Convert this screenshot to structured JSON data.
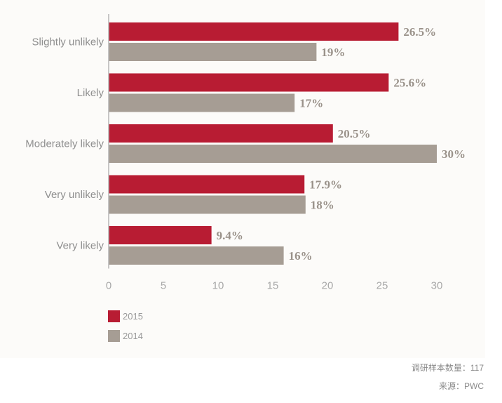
{
  "chart_data": {
    "type": "bar",
    "orientation": "horizontal",
    "categories": [
      "Slightly unlikely",
      "Likely",
      "Moderately likely",
      "Very unlikely",
      "Very likely"
    ],
    "series": [
      {
        "name": "2015",
        "values": [
          26.5,
          25.6,
          20.5,
          17.9,
          9.4
        ],
        "labels": [
          "26.5%",
          "25.6%",
          "20.5%",
          "17.9%",
          "9.4%"
        ],
        "color": "#b81c33"
      },
      {
        "name": "2014",
        "values": [
          19,
          17,
          30,
          18,
          16
        ],
        "labels": [
          "19%",
          "17%",
          "30%",
          "18%",
          "16%"
        ],
        "color": "#a69d94"
      }
    ],
    "xlim": [
      0,
      30
    ],
    "xticks": [
      0,
      5,
      10,
      15,
      20,
      25,
      30
    ],
    "grid": false,
    "legend": "bottom-left"
  },
  "notes": {
    "sample": "调研样本数量：117",
    "source": "来源：PWC"
  },
  "colors": {
    "axis": "#b5b5b5",
    "category_text": "#8f8f8f",
    "tick_text": "#a8a8a8",
    "label_text": "#9a928a"
  }
}
